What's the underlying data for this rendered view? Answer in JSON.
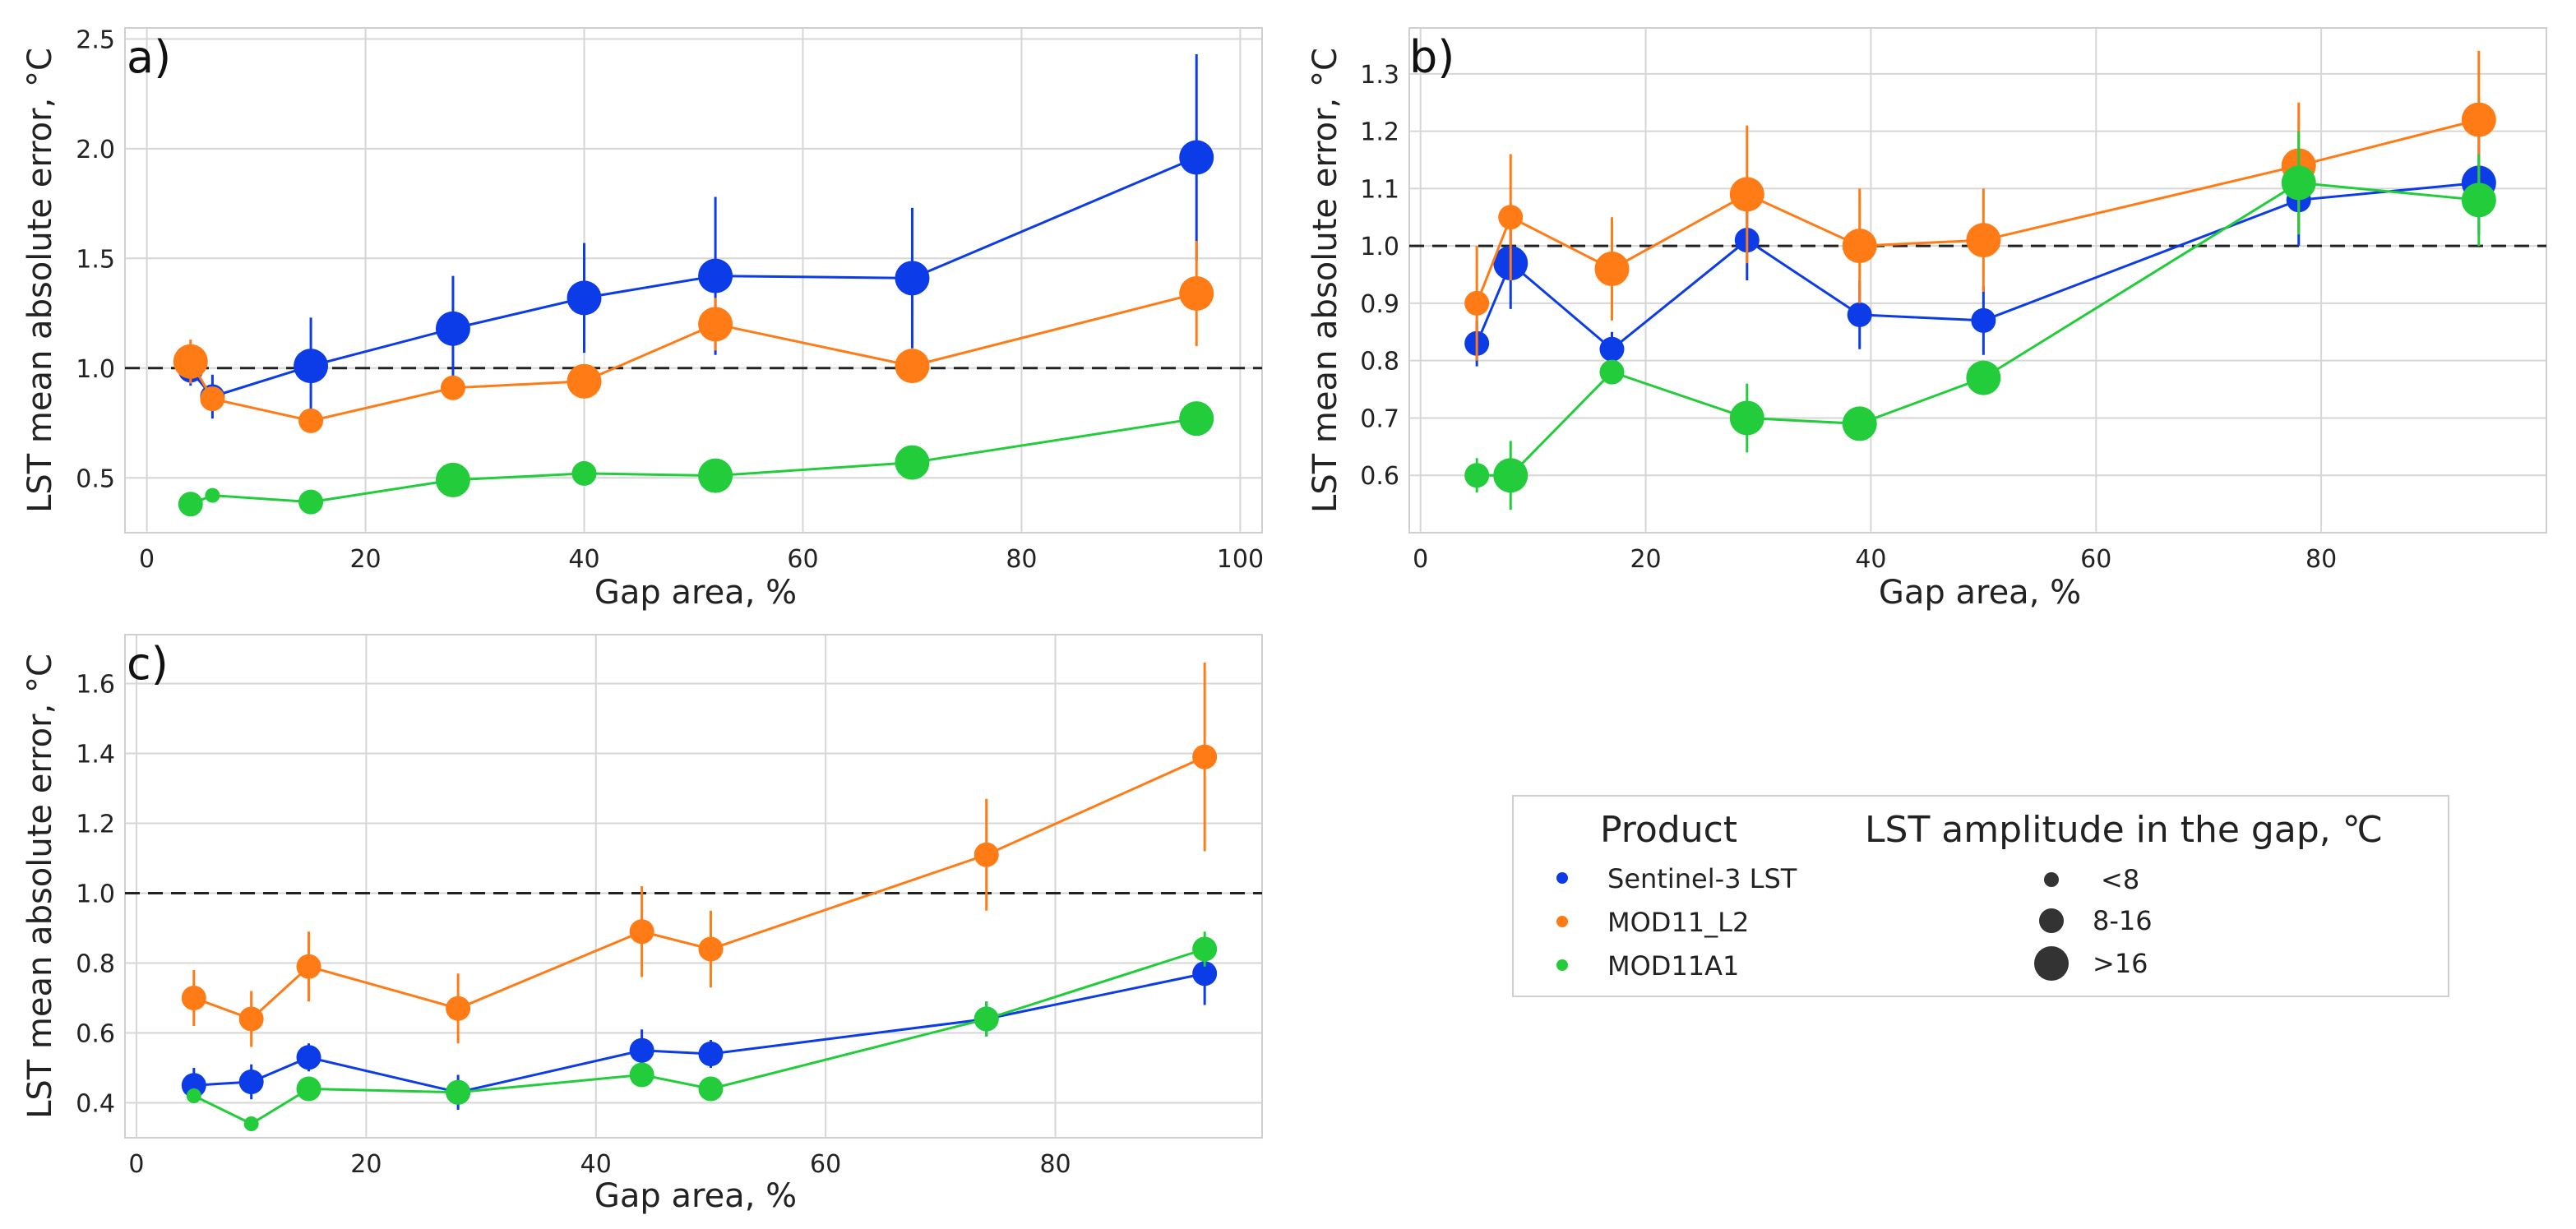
{
  "colors": {
    "Sentinel-3 LST": "#0c3be8",
    "MOD11_L2": "#ff7b16",
    "MOD11A1": "#22cc3a",
    "grid": "#d6d6d6",
    "reference": "#222222"
  },
  "legend": {
    "product_title": "Product",
    "products": [
      "Sentinel-3 LST",
      "MOD11_L2",
      "MOD11A1"
    ],
    "amplitude_title": "LST amplitude in the gap, ℃",
    "amplitude_classes": [
      "<8",
      "8-16",
      ">16"
    ]
  },
  "chart_data": [
    {
      "type": "scatter",
      "panel": "a)",
      "xlabel": "Gap area, %",
      "ylabel": "LST mean absolute error, °C",
      "xlim": [
        -2,
        102
      ],
      "ylim": [
        0.25,
        2.55
      ],
      "xticks": [
        0,
        20,
        40,
        60,
        80,
        100
      ],
      "yticks": [
        0.5,
        1.0,
        1.5,
        2.0,
        2.5
      ],
      "ytick_labels": [
        "0.5",
        "1.0",
        "1.5",
        "2.0",
        "2.5"
      ],
      "reference_line": 1.0,
      "series": [
        {
          "name": "Sentinel-3 LST",
          "x": [
            4,
            6,
            15,
            28,
            40,
            52,
            70,
            96
          ],
          "y": [
            0.99,
            0.87,
            1.01,
            1.18,
            1.32,
            1.42,
            1.41,
            1.96
          ],
          "err": [
            0.07,
            0.1,
            0.22,
            0.24,
            0.25,
            0.36,
            0.32,
            0.47
          ],
          "size_class": [
            "8-16",
            "8-16",
            ">16",
            ">16",
            ">16",
            ">16",
            ">16",
            ">16"
          ]
        },
        {
          "name": "MOD11_L2",
          "x": [
            4,
            6,
            15,
            28,
            40,
            52,
            70,
            96
          ],
          "y": [
            1.03,
            0.86,
            0.76,
            0.91,
            0.94,
            1.2,
            1.01,
            1.34
          ],
          "err": [
            0.1,
            0.05,
            0.03,
            0.03,
            0.04,
            0.12,
            0.04,
            0.24
          ],
          "size_class": [
            ">16",
            "8-16",
            "8-16",
            "8-16",
            ">16",
            ">16",
            ">16",
            ">16"
          ]
        },
        {
          "name": "MOD11A1",
          "x": [
            4,
            6,
            15,
            28,
            40,
            52,
            70,
            96
          ],
          "y": [
            0.38,
            0.42,
            0.39,
            0.49,
            0.52,
            0.51,
            0.57,
            0.77
          ],
          "err": [
            0.02,
            0.02,
            0.02,
            0.02,
            0.02,
            0.02,
            0.02,
            0.03
          ],
          "size_class": [
            "8-16",
            "<8",
            "8-16",
            ">16",
            "8-16",
            ">16",
            ">16",
            ">16"
          ]
        }
      ]
    },
    {
      "type": "scatter",
      "panel": "b)",
      "xlabel": "Gap area, %",
      "ylabel": "LST mean absolute error, °C",
      "xlim": [
        -1,
        100
      ],
      "ylim": [
        0.5,
        1.38
      ],
      "xticks": [
        0,
        20,
        40,
        60,
        80
      ],
      "yticks": [
        0.6,
        0.7,
        0.8,
        0.9,
        1.0,
        1.1,
        1.2,
        1.3
      ],
      "ytick_labels": [
        "0.6",
        "0.7",
        "0.8",
        "0.9",
        "1.0",
        "1.1",
        "1.2",
        "1.3"
      ],
      "reference_line": 1.0,
      "series": [
        {
          "name": "Sentinel-3 LST",
          "x": [
            5,
            8,
            17,
            29,
            39,
            50,
            78,
            94
          ],
          "y": [
            0.83,
            0.97,
            0.82,
            1.01,
            0.88,
            0.87,
            1.08,
            1.11
          ],
          "err": [
            0.04,
            0.08,
            0.03,
            0.07,
            0.06,
            0.06,
            0.08,
            0.09
          ],
          "size_class": [
            "8-16",
            ">16",
            "8-16",
            "8-16",
            "8-16",
            "8-16",
            "8-16",
            ">16"
          ]
        },
        {
          "name": "MOD11_L2",
          "x": [
            5,
            8,
            17,
            29,
            39,
            50,
            78,
            94
          ],
          "y": [
            0.9,
            1.05,
            0.96,
            1.09,
            1.0,
            1.01,
            1.14,
            1.22
          ],
          "err": [
            0.1,
            0.11,
            0.09,
            0.12,
            0.1,
            0.09,
            0.11,
            0.12
          ],
          "size_class": [
            "8-16",
            "8-16",
            ">16",
            ">16",
            ">16",
            ">16",
            ">16",
            ">16"
          ]
        },
        {
          "name": "MOD11A1",
          "x": [
            5,
            8,
            17,
            29,
            39,
            50,
            78,
            94
          ],
          "y": [
            0.6,
            0.6,
            0.78,
            0.7,
            0.69,
            0.77,
            1.11,
            1.08
          ],
          "err": [
            0.03,
            0.06,
            0.02,
            0.06,
            0.02,
            0.02,
            0.09,
            0.08
          ],
          "size_class": [
            "8-16",
            ">16",
            "8-16",
            ">16",
            ">16",
            ">16",
            ">16",
            ">16"
          ]
        }
      ]
    },
    {
      "type": "scatter",
      "panel": "c)",
      "xlabel": "Gap area, %",
      "ylabel": "LST mean absolute error, °C",
      "xlim": [
        -1,
        98
      ],
      "ylim": [
        0.3,
        1.74
      ],
      "xticks": [
        0,
        20,
        40,
        60,
        80
      ],
      "yticks": [
        0.4,
        0.6,
        0.8,
        1.0,
        1.2,
        1.4,
        1.6
      ],
      "ytick_labels": [
        "0.4",
        "0.6",
        "0.8",
        "1.0",
        "1.2",
        "1.4",
        "1.6"
      ],
      "reference_line": 1.0,
      "series": [
        {
          "name": "Sentinel-3 LST",
          "x": [
            5,
            10,
            15,
            28,
            44,
            50,
            74,
            93
          ],
          "y": [
            0.45,
            0.46,
            0.53,
            0.43,
            0.55,
            0.54,
            0.64,
            0.77
          ],
          "err": [
            0.05,
            0.05,
            0.04,
            0.05,
            0.06,
            0.04,
            0.05,
            0.09
          ],
          "size_class": [
            "8-16",
            "8-16",
            "8-16",
            "8-16",
            "8-16",
            "8-16",
            "8-16",
            "8-16"
          ]
        },
        {
          "name": "MOD11_L2",
          "x": [
            5,
            10,
            15,
            28,
            44,
            50,
            74,
            93
          ],
          "y": [
            0.7,
            0.64,
            0.79,
            0.67,
            0.89,
            0.84,
            1.11,
            1.39
          ],
          "err": [
            0.08,
            0.08,
            0.1,
            0.1,
            0.13,
            0.11,
            0.16,
            0.27
          ],
          "size_class": [
            "8-16",
            "8-16",
            "8-16",
            "8-16",
            "8-16",
            "8-16",
            "8-16",
            "8-16"
          ]
        },
        {
          "name": "MOD11A1",
          "x": [
            5,
            10,
            15,
            28,
            44,
            50,
            74,
            93
          ],
          "y": [
            0.42,
            0.34,
            0.44,
            0.43,
            0.48,
            0.44,
            0.64,
            0.84
          ],
          "err": [
            0.02,
            0.02,
            0.02,
            0.03,
            0.03,
            0.02,
            0.05,
            0.05
          ],
          "size_class": [
            "<8",
            "<8",
            "8-16",
            "8-16",
            "8-16",
            "8-16",
            "8-16",
            "8-16"
          ]
        }
      ]
    }
  ]
}
